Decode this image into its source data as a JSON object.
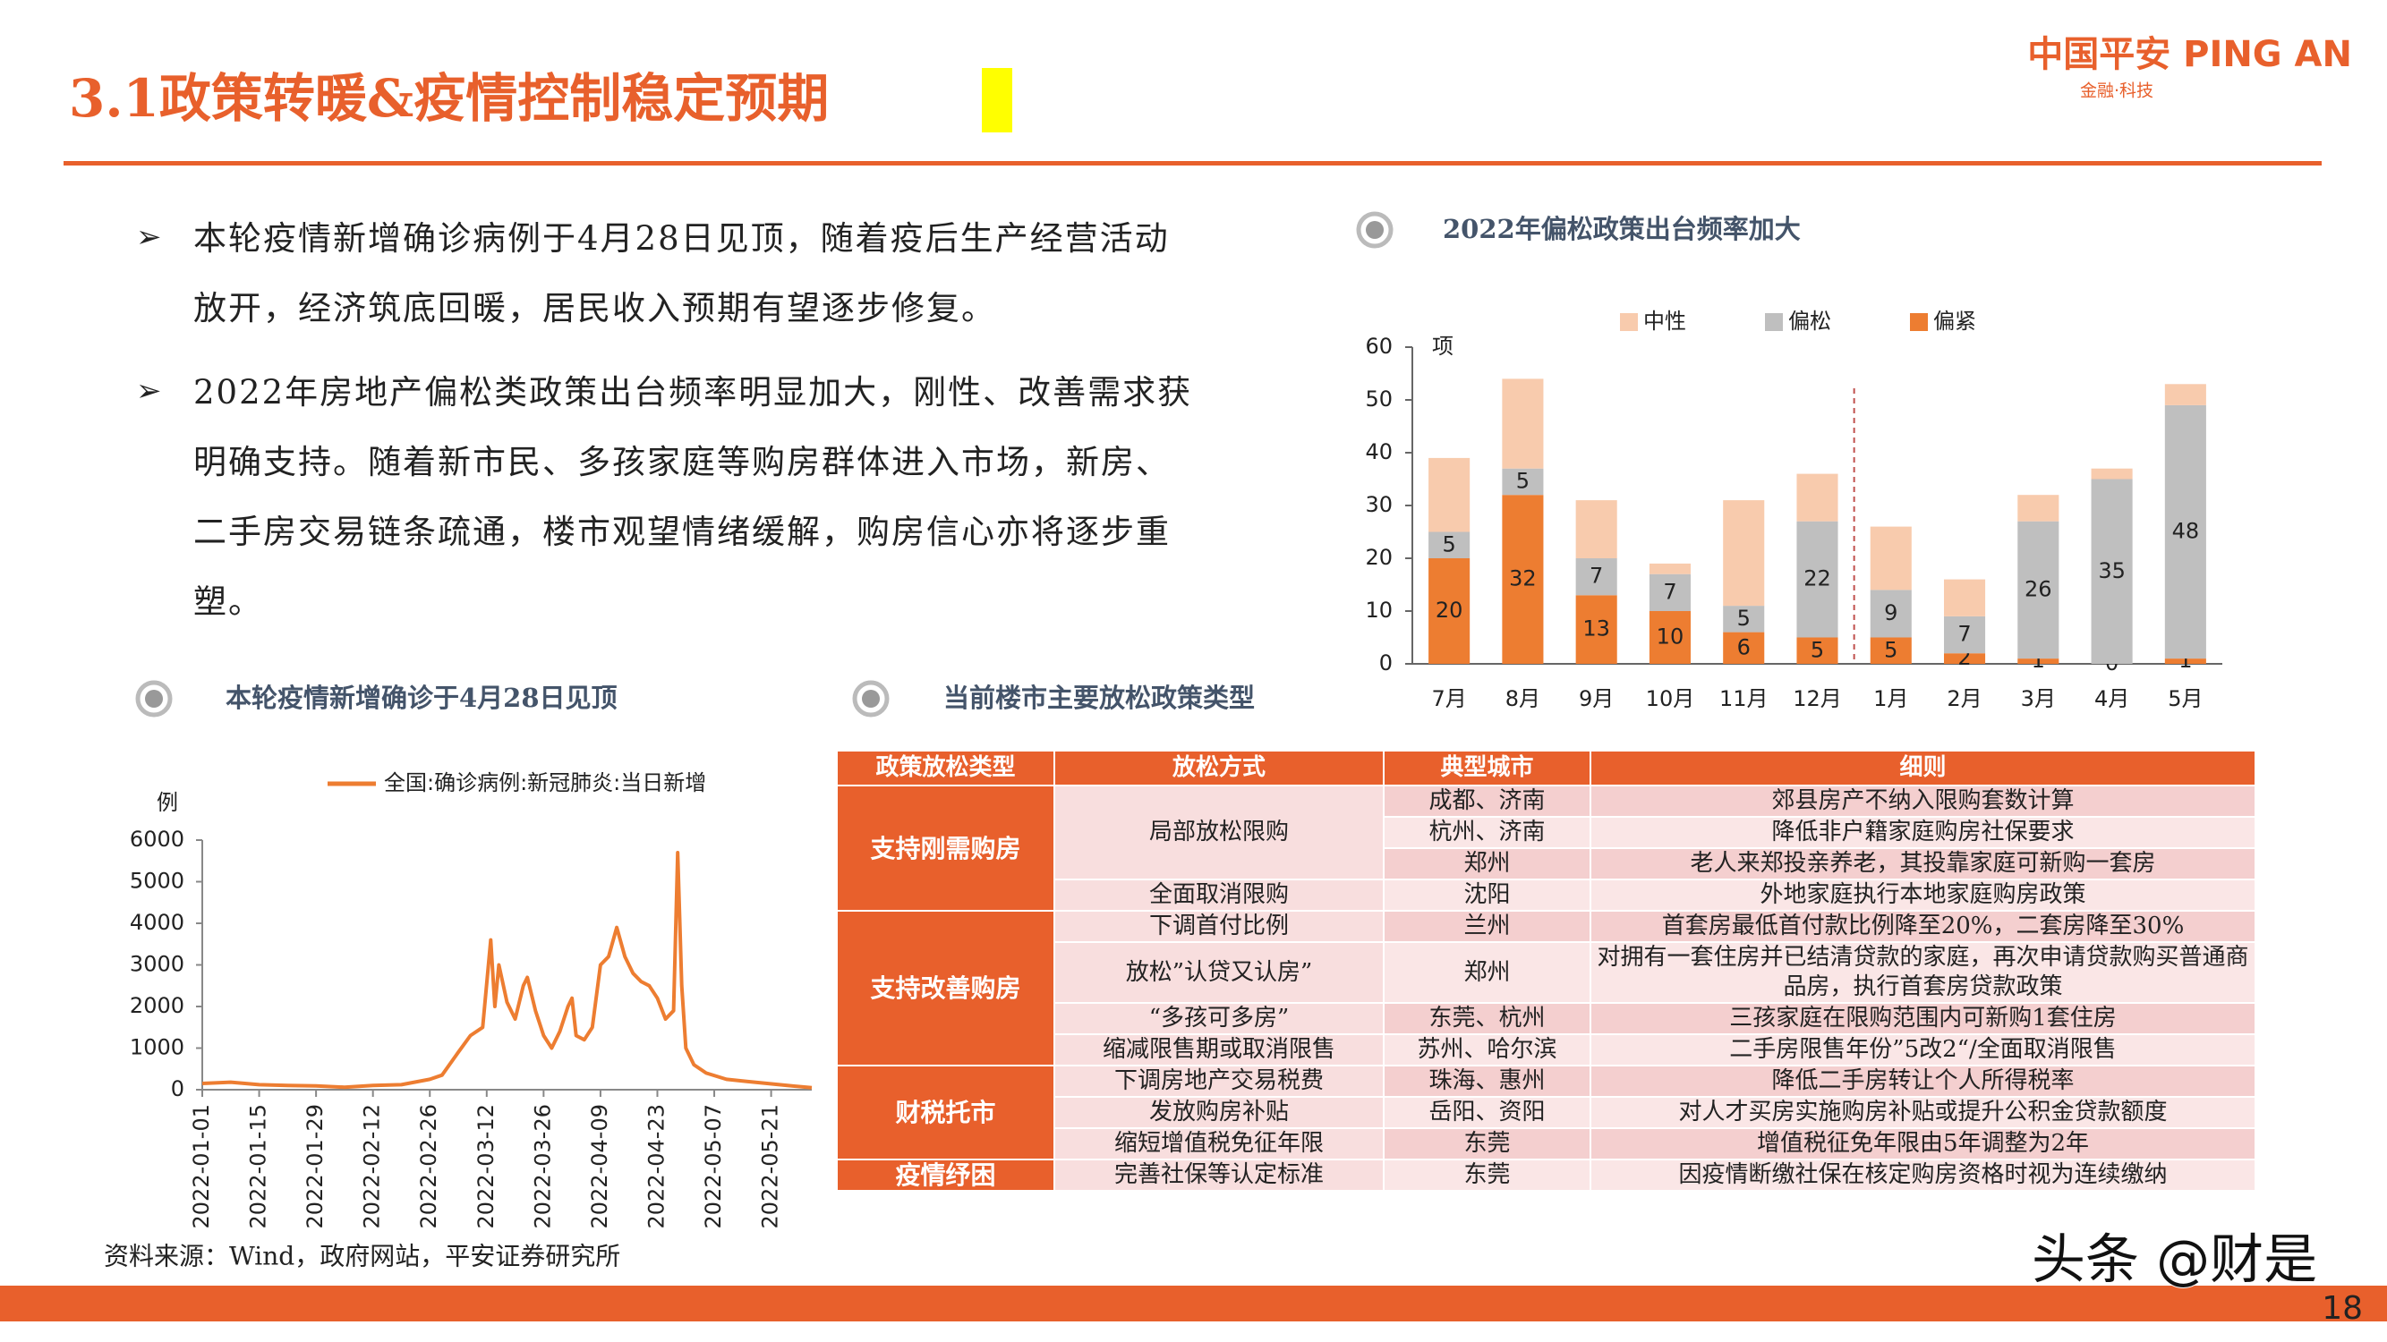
{
  "header": {
    "title": "3.1政策转暖&疫情控制稳定预期",
    "logo": "中国平安 PING AN",
    "logo_tagline": "金融·科技"
  },
  "bullets": [
    "本轮疫情新增确诊病例于4月28日见顶，随着疫后生产经营活动放开，经济筑底回暖，居民收入预期有望逐步修复。",
    "2022年房地产偏松类政策出台频率明显加大，刚性、改善需求获明确支持。随着新市民、多孩家庭等购房群体进入市场，新房、二手房交易链条疏通，楼市观望情绪缓解，购房信心亦将逐步重塑。"
  ],
  "chart_data": [
    {
      "type": "bar",
      "stacked": true,
      "title": "2022年偏松政策出台频率加大",
      "y_unit": "项",
      "categories": [
        "7月",
        "8月",
        "9月",
        "10月",
        "11月",
        "12月",
        "1月",
        "2月",
        "3月",
        "4月",
        "5月"
      ],
      "series": [
        {
          "name": "偏紧",
          "color": "#ed7d31",
          "labels": true,
          "values": [
            20,
            32,
            13,
            10,
            6,
            5,
            5,
            2,
            1,
            0,
            1
          ]
        },
        {
          "name": "偏松",
          "color": "#bfbfbf",
          "labels": true,
          "values": [
            5,
            5,
            7,
            7,
            5,
            22,
            9,
            7,
            26,
            35,
            48
          ]
        },
        {
          "name": "中性",
          "color": "#f8cbad",
          "labels": false,
          "values": [
            14,
            17,
            11,
            2,
            20,
            9,
            12,
            7,
            5,
            2,
            4
          ]
        }
      ],
      "ylim": [
        0,
        60
      ],
      "yticks": [
        0,
        10,
        20,
        30,
        40,
        50,
        60
      ],
      "grid": false,
      "legend": "top"
    },
    {
      "type": "line",
      "title": "本轮疫情新增确诊于4月28日见顶",
      "y_unit": "例",
      "x": [
        "2022-01-01",
        "2022-01-08",
        "2022-01-15",
        "2022-01-22",
        "2022-01-29",
        "2022-02-05",
        "2022-02-12",
        "2022-02-19",
        "2022-02-26",
        "2022-03-01",
        "2022-03-05",
        "2022-03-08",
        "2022-03-11",
        "2022-03-13",
        "2022-03-14",
        "2022-03-15",
        "2022-03-17",
        "2022-03-19",
        "2022-03-21",
        "2022-03-22",
        "2022-03-24",
        "2022-03-26",
        "2022-03-28",
        "2022-03-30",
        "2022-04-01",
        "2022-04-02",
        "2022-04-03",
        "2022-04-05",
        "2022-04-07",
        "2022-04-09",
        "2022-04-11",
        "2022-04-13",
        "2022-04-15",
        "2022-04-17",
        "2022-04-19",
        "2022-04-21",
        "2022-04-23",
        "2022-04-25",
        "2022-04-27",
        "2022-04-28",
        "2022-04-29",
        "2022-04-30",
        "2022-05-02",
        "2022-05-05",
        "2022-05-10",
        "2022-05-15",
        "2022-05-20",
        "2022-05-25",
        "2022-05-31"
      ],
      "series": [
        {
          "name": "全国:确诊病例:新冠肺炎:当日新增",
          "color": "#ed7d31",
          "values": [
            150,
            180,
            120,
            100,
            90,
            60,
            100,
            120,
            250,
            350,
            900,
            1300,
            1500,
            3600,
            2000,
            3000,
            2100,
            1700,
            2500,
            2700,
            1900,
            1300,
            1000,
            1400,
            2000,
            2200,
            1300,
            1200,
            1500,
            3000,
            3200,
            3900,
            3200,
            2800,
            2600,
            2500,
            2200,
            1700,
            1900,
            5700,
            2500,
            1000,
            600,
            400,
            250,
            200,
            150,
            100,
            50
          ]
        }
      ],
      "xlim": [
        "2022-01-01",
        "2022-05-31"
      ],
      "xticks": [
        "2022-01-01",
        "2022-01-15",
        "2022-01-29",
        "2022-02-12",
        "2022-02-26",
        "2022-03-12",
        "2022-03-26",
        "2022-04-09",
        "2022-04-23",
        "2022-05-07",
        "2022-05-21"
      ],
      "ylim": [
        0,
        6000
      ],
      "yticks": [
        0,
        1000,
        2000,
        3000,
        4000,
        5000,
        6000
      ],
      "grid": false,
      "legend": "top"
    }
  ],
  "table": {
    "title": "当前楼市主要放松政策类型",
    "header": [
      "政策放松类型",
      "放松方式",
      "典型城市",
      "细则"
    ],
    "groups": [
      {
        "type": "支持刚需购房",
        "methods": [
          {
            "method": "局部放松限购",
            "items": [
              {
                "city": "成都、济南",
                "detail": "郊县房产不纳入限购套数计算"
              },
              {
                "city": "杭州、济南",
                "detail": "降低非户籍家庭购房社保要求"
              },
              {
                "city": "郑州",
                "detail": "老人来郑投亲养老，其投靠家庭可新购一套房"
              }
            ]
          },
          {
            "method": "全面取消限购",
            "items": [
              {
                "city": "沈阳",
                "detail": "外地家庭执行本地家庭购房政策"
              }
            ]
          }
        ]
      },
      {
        "type": "支持改善购房",
        "methods": [
          {
            "method": "下调首付比例",
            "items": [
              {
                "city": "兰州",
                "detail": "首套房最低首付款比例降至20%，二套房降至30%"
              }
            ]
          },
          {
            "method": "放松”认贷又认房”",
            "items": [
              {
                "city": "郑州",
                "detail": "对拥有一套住房并已结清贷款的家庭，再次申请贷款购买普通商品房，执行首套房贷款政策"
              }
            ]
          },
          {
            "method": "“多孩可多房”",
            "items": [
              {
                "city": "东莞、杭州",
                "detail": "三孩家庭在限购范围内可新购1套住房"
              }
            ]
          },
          {
            "method": "缩减限售期或取消限售",
            "items": [
              {
                "city": "苏州、哈尔滨",
                "detail": "二手房限售年份”5改2“/全面取消限售"
              }
            ]
          }
        ]
      },
      {
        "type": "财税托市",
        "methods": [
          {
            "method": "下调房地产交易税费",
            "items": [
              {
                "city": "珠海、惠州",
                "detail": "降低二手房转让个人所得税率"
              }
            ]
          },
          {
            "method": "发放购房补贴",
            "items": [
              {
                "city": "岳阳、资阳",
                "detail": "对人才买房实施购房补贴或提升公积金贷款额度"
              }
            ]
          },
          {
            "method": "缩短增值税免征年限",
            "items": [
              {
                "city": "东莞",
                "detail": "增值税征免年限由5年调整为2年"
              }
            ]
          }
        ]
      },
      {
        "type": "疫情纾困",
        "methods": [
          {
            "method": "完善社保等认定标准",
            "items": [
              {
                "city": "东莞",
                "detail": "因疫情断缴社保在核定购房资格时视为连续缴纳"
              }
            ]
          }
        ]
      }
    ]
  },
  "source": "资料来源：Wind，政府网站，平安证券研究所",
  "watermark": "头条 @财是",
  "page_number": 18
}
